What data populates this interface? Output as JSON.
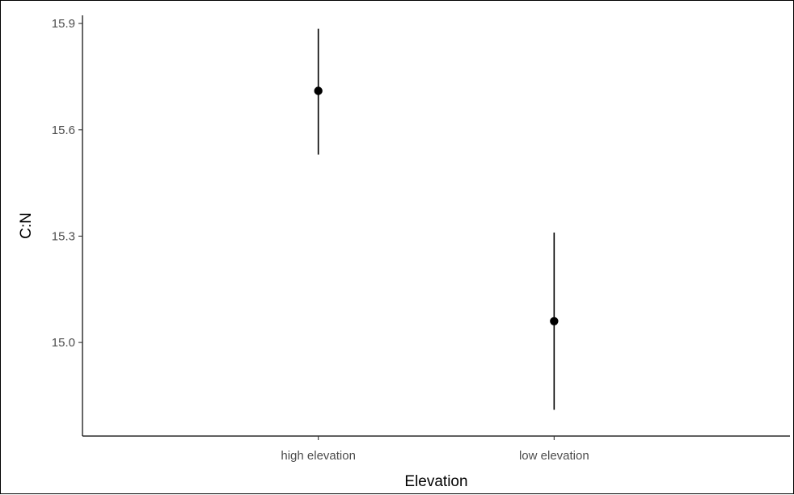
{
  "chart_data": {
    "type": "scatter",
    "title": "",
    "xlabel": "Elevation",
    "ylabel": "C:N",
    "categories": [
      "high elevation",
      "low elevation"
    ],
    "series": [
      {
        "points": [
          {
            "category": "high elevation",
            "y": 15.71,
            "ymin": 15.53,
            "ymax": 15.885
          },
          {
            "category": "low elevation",
            "y": 15.06,
            "ymin": 14.81,
            "ymax": 15.31
          }
        ]
      }
    ],
    "yticks": [
      "15.0",
      "15.3",
      "15.6",
      "15.9"
    ],
    "ylim": [
      14.736,
      15.923
    ],
    "grid": false,
    "legend": "none",
    "point_color": "#000000",
    "errorbar_color": "#000000",
    "axis_color": "#000000",
    "tick_label_color": "#4d4d4d"
  }
}
